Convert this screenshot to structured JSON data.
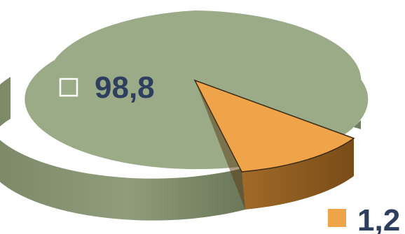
{
  "chart_data": {
    "type": "pie",
    "title": "",
    "slices": [
      {
        "label": "98,8",
        "value": 98.8,
        "color": "#9bab88",
        "side_color": "#6f7d5f",
        "marker": "outline"
      },
      {
        "label": "1,2",
        "value": 1.2,
        "color": "#f0a44a",
        "side_color": "#8a5a1e",
        "marker": "filled",
        "exploded": true
      }
    ],
    "three_d": true
  }
}
